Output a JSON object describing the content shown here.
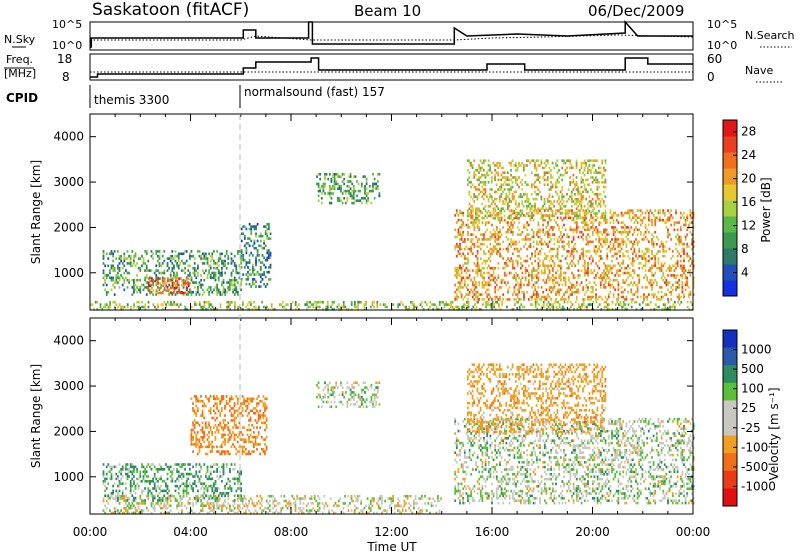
{
  "header": {
    "station": "Saskatoon (fitACF)",
    "beam": "Beam 10",
    "date": "06/Dec/2009"
  },
  "top_panels": {
    "nsky_label": "N.Sky",
    "nsky_tick_high": "10^5",
    "nsky_tick_low": "10^0",
    "nsearch_label": "N.Search",
    "freq_label_line1": "Freq.",
    "freq_label_line2": "[MHz]",
    "freq_ticks": [
      "18",
      "8"
    ],
    "nave_label": "Nave",
    "nave_ticks": [
      "60",
      "0"
    ],
    "cpid_label": "CPID",
    "cpid_segments": [
      {
        "label": "themis 3300",
        "start_hour": 0.0,
        "end_hour": 6.0
      },
      {
        "label": "normalsound (fast) 157",
        "start_hour": 6.0,
        "end_hour": 24.0
      }
    ]
  },
  "chart_data": [
    {
      "type": "heatmap",
      "title": "",
      "xlabel": "Time UT",
      "ylabel": "Slant Range [km]",
      "x_range_hours": [
        0,
        24
      ],
      "ylim": [
        180,
        4500
      ],
      "x_ticks": [
        "00:00",
        "04:00",
        "08:00",
        "12:00",
        "16:00",
        "20:00",
        "00:00"
      ],
      "y_ticks": [
        1000,
        2000,
        3000,
        4000
      ],
      "colorbar": {
        "label": "Power [dB]",
        "ticks": [
          4,
          8,
          12,
          16,
          20,
          24,
          28
        ],
        "range": [
          0,
          30
        ],
        "colors": [
          "#1430e0",
          "#2050b8",
          "#2e7a68",
          "#3c9a50",
          "#5ab848",
          "#a8d040",
          "#e8c830",
          "#f09a28",
          "#f07020",
          "#e84020",
          "#e01818"
        ]
      },
      "scatter_regions": [
        {
          "name": "ground-scatter-band",
          "t_start": 0.0,
          "t_end": 24.0,
          "r_low": 190,
          "r_high": 380,
          "mean_power": 14
        },
        {
          "name": "early-patch",
          "t_start": 0.5,
          "t_end": 6.0,
          "r_low": 500,
          "r_high": 1500,
          "mean_power": 10
        },
        {
          "name": "early-hot-spot",
          "t_start": 2.3,
          "t_end": 4.0,
          "r_low": 550,
          "r_high": 900,
          "mean_power": 24
        },
        {
          "name": "late-morning-patch",
          "t_start": 6.0,
          "t_end": 7.2,
          "r_low": 700,
          "r_high": 2100,
          "mean_power": 8
        },
        {
          "name": "high-range-arc",
          "t_start": 9.0,
          "t_end": 11.5,
          "r_low": 2550,
          "r_high": 3200,
          "mean_power": 11
        },
        {
          "name": "evening-main",
          "t_start": 14.5,
          "t_end": 24.0,
          "r_low": 400,
          "r_high": 2400,
          "mean_power": 20
        },
        {
          "name": "evening-high",
          "t_start": 15.0,
          "t_end": 20.5,
          "r_low": 2200,
          "r_high": 3500,
          "mean_power": 17
        }
      ]
    },
    {
      "type": "heatmap",
      "title": "",
      "xlabel": "Time UT",
      "ylabel": "Slant Range [km]",
      "x_range_hours": [
        0,
        24
      ],
      "ylim": [
        180,
        4500
      ],
      "x_ticks": [
        "00:00",
        "04:00",
        "08:00",
        "12:00",
        "16:00",
        "20:00",
        "00:00"
      ],
      "y_ticks": [
        1000,
        2000,
        3000,
        4000
      ],
      "colorbar": {
        "label": "Velocity [m s^-1]",
        "ticks": [
          "1000",
          "500",
          "100",
          "25",
          "-25",
          "-100",
          "-500",
          "-1000"
        ],
        "colors": [
          "#1430c0",
          "#2a5aa8",
          "#2e8c60",
          "#5abf3c",
          "#c8c8c0",
          "#c8c8c0",
          "#f0a020",
          "#f07018",
          "#e83c18",
          "#e01010"
        ]
      },
      "scatter_regions": [
        {
          "name": "ground-scatter-band",
          "t_start": 0.5,
          "t_end": 14.0,
          "r_low": 190,
          "r_high": 600,
          "mean_velocity": -50
        },
        {
          "name": "early-patch",
          "t_start": 0.5,
          "t_end": 6.0,
          "r_low": 500,
          "r_high": 1300,
          "mean_velocity": 100
        },
        {
          "name": "orange-blobs",
          "t_start": 4.0,
          "t_end": 7.0,
          "r_low": 1500,
          "r_high": 2800,
          "mean_velocity": -300
        },
        {
          "name": "grey-arc",
          "t_start": 9.0,
          "t_end": 11.5,
          "r_low": 2550,
          "r_high": 3100,
          "mean_velocity": 0
        },
        {
          "name": "evening-grey",
          "t_start": 14.5,
          "t_end": 24.0,
          "r_low": 400,
          "r_high": 2300,
          "mean_velocity": 0
        },
        {
          "name": "evening-high",
          "t_start": 15.0,
          "t_end": 20.5,
          "r_low": 2000,
          "r_high": 3500,
          "mean_velocity": -200
        }
      ]
    }
  ]
}
